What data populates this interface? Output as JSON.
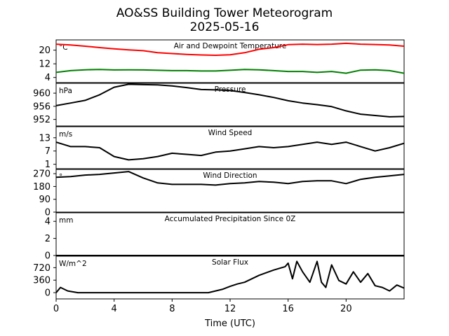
{
  "figure": {
    "title": "AO&SS Building Tower Meteorogram",
    "date": "2025-05-16",
    "xlabel": "Time (UTC)",
    "x_ticks": [
      0,
      4,
      8,
      12,
      16,
      20
    ],
    "x_range": [
      0,
      24
    ]
  },
  "chart_data": [
    {
      "type": "line",
      "title": "Air and Dewpoint Temperature",
      "unit": "°C",
      "ylim": [
        1,
        26
      ],
      "yticks": [
        4,
        12,
        20
      ],
      "x": [
        0,
        1,
        2,
        3,
        4,
        5,
        6,
        7,
        8,
        9,
        10,
        11,
        12,
        13,
        14,
        15,
        16,
        17,
        18,
        19,
        20,
        21,
        22,
        23,
        24
      ],
      "series": [
        {
          "values": [
            23.5,
            23,
            22.3,
            21.5,
            20.8,
            20.2,
            19.7,
            18.5,
            18,
            17.5,
            17.2,
            17,
            17.3,
            18.5,
            20.5,
            21.5,
            23.2,
            23.5,
            23.3,
            23.5,
            24,
            23.5,
            23.3,
            23,
            22.3
          ],
          "color": "#ff0000"
        },
        {
          "values": [
            7,
            8,
            8.5,
            8.7,
            8.4,
            8.5,
            8.4,
            8.2,
            8,
            8,
            7.8,
            7.8,
            8.2,
            8.7,
            8.5,
            8,
            7.5,
            7.5,
            7,
            7.5,
            6.5,
            8.3,
            8.5,
            8,
            6.5
          ],
          "color": "#008000"
        }
      ]
    },
    {
      "type": "line",
      "title": "Pressure",
      "unit": "hPa",
      "ylim": [
        950,
        963
      ],
      "yticks": [
        952,
        956,
        960
      ],
      "x": [
        0,
        1,
        2,
        3,
        4,
        5,
        6,
        7,
        8,
        9,
        10,
        11,
        12,
        13,
        14,
        15,
        16,
        17,
        18,
        19,
        20,
        21,
        22,
        23,
        24
      ],
      "series": [
        {
          "values": [
            956.2,
            957,
            957.8,
            959.5,
            961.8,
            962.7,
            962.6,
            962.5,
            962.2,
            961.7,
            961.1,
            961,
            960.8,
            960.2,
            959.5,
            958.7,
            957.7,
            957,
            956.5,
            955.9,
            954.6,
            953.6,
            953.2,
            952.8,
            952.9
          ],
          "color": "#000000"
        }
      ]
    },
    {
      "type": "line",
      "title": "Wind Speed",
      "unit": "m/s",
      "ylim": [
        -1,
        18
      ],
      "yticks": [
        1,
        7,
        13
      ],
      "x": [
        0,
        1,
        2,
        3,
        4,
        5,
        6,
        7,
        8,
        9,
        10,
        11,
        12,
        13,
        14,
        15,
        16,
        17,
        18,
        19,
        20,
        21,
        22,
        23,
        24
      ],
      "series": [
        {
          "values": [
            11,
            9,
            9,
            8.5,
            4.5,
            3,
            3.5,
            4.5,
            6,
            5.5,
            5,
            6.5,
            7,
            8,
            9,
            8.5,
            9,
            10,
            11,
            10,
            11,
            9,
            7,
            8.5,
            10.5
          ],
          "color": "#000000"
        }
      ]
    },
    {
      "type": "line",
      "title": "Wind Direction",
      "unit": "°",
      "ylim": [
        0,
        300
      ],
      "yticks": [
        0,
        90,
        180,
        270
      ],
      "x": [
        0,
        1,
        2,
        3,
        4,
        5,
        6,
        7,
        8,
        9,
        10,
        11,
        12,
        13,
        14,
        15,
        16,
        17,
        18,
        19,
        20,
        21,
        22,
        23,
        24
      ],
      "series": [
        {
          "values": [
            245,
            250,
            260,
            265,
            275,
            285,
            240,
            205,
            195,
            195,
            195,
            190,
            200,
            205,
            215,
            210,
            200,
            215,
            220,
            220,
            200,
            230,
            245,
            255,
            265
          ],
          "color": "#000000"
        }
      ]
    },
    {
      "type": "line",
      "title": "Accumulated Precipitation Since 0Z",
      "unit": "mm",
      "ylim": [
        0,
        5
      ],
      "yticks": [
        0,
        2,
        4
      ],
      "x": [
        0,
        24
      ],
      "series": [
        {
          "values": [
            0,
            0
          ],
          "color": "#000000"
        }
      ]
    },
    {
      "type": "line",
      "title": "Solar Flux",
      "unit": "W/m^2",
      "ylim": [
        -180,
        1050
      ],
      "yticks": [
        0,
        360,
        720
      ],
      "x": [
        0,
        0.3,
        0.8,
        1.5,
        3,
        5,
        7,
        9,
        10.5,
        11.5,
        12,
        12.5,
        13,
        14,
        15,
        15.8,
        16,
        16.3,
        16.6,
        17,
        17.5,
        18,
        18.3,
        18.6,
        19,
        19.5,
        20,
        20.5,
        21,
        21.5,
        22,
        22.5,
        23,
        23.5,
        24
      ],
      "series": [
        {
          "values": [
            0,
            150,
            50,
            0,
            0,
            0,
            0,
            0,
            0,
            100,
            180,
            250,
            300,
            500,
            650,
            750,
            850,
            400,
            900,
            600,
            300,
            900,
            300,
            150,
            800,
            350,
            250,
            600,
            300,
            550,
            200,
            150,
            50,
            220,
            130
          ],
          "color": "#000000"
        }
      ]
    }
  ]
}
